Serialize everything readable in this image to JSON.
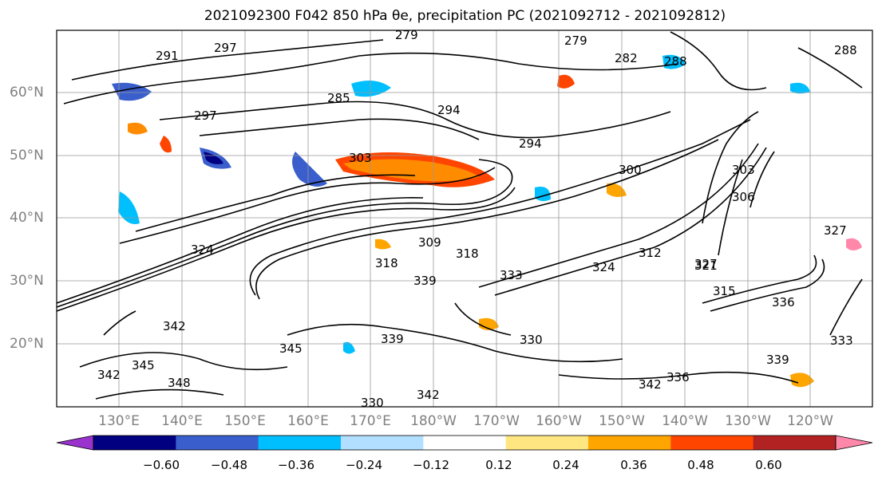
{
  "title": "2021092300 F042 850 hPa θe, precipitation PC (2021092712 - 2021092812)",
  "lat_labels": [
    "60°N",
    "50°N",
    "40°N",
    "30°N",
    "20°N"
  ],
  "lon_labels": [
    "130°E",
    "140°E",
    "150°E",
    "160°E",
    "170°E",
    "180°W",
    "170°W",
    "160°W",
    "150°W",
    "140°W",
    "130°W",
    "120°W"
  ],
  "contour_labels": [
    "279",
    "279",
    "282",
    "288",
    "294",
    "291",
    "297",
    "294",
    "297",
    "300",
    "303",
    "306",
    "303",
    "309",
    "318",
    "318",
    "312",
    "324",
    "324",
    "327",
    "330",
    "333",
    "336",
    "339",
    "339",
    "342",
    "342",
    "342",
    "342",
    "345",
    "345",
    "348",
    "339",
    "336",
    "333",
    "330",
    "327",
    "321",
    "315",
    "285",
    "288"
  ],
  "colorbar": {
    "ticks": [
      "−0.60",
      "−0.48",
      "−0.36",
      "−0.24",
      "−0.12",
      "0.12",
      "0.24",
      "0.36",
      "0.48",
      "0.60"
    ],
    "colors": [
      "#9a32cd",
      "#000080",
      "#3a5fcd",
      "#00bfff",
      "#b2dfff",
      "#ffffff",
      "#ffe680",
      "#ffa500",
      "#ff4500",
      "#b22222",
      "#ff88aa"
    ]
  }
}
